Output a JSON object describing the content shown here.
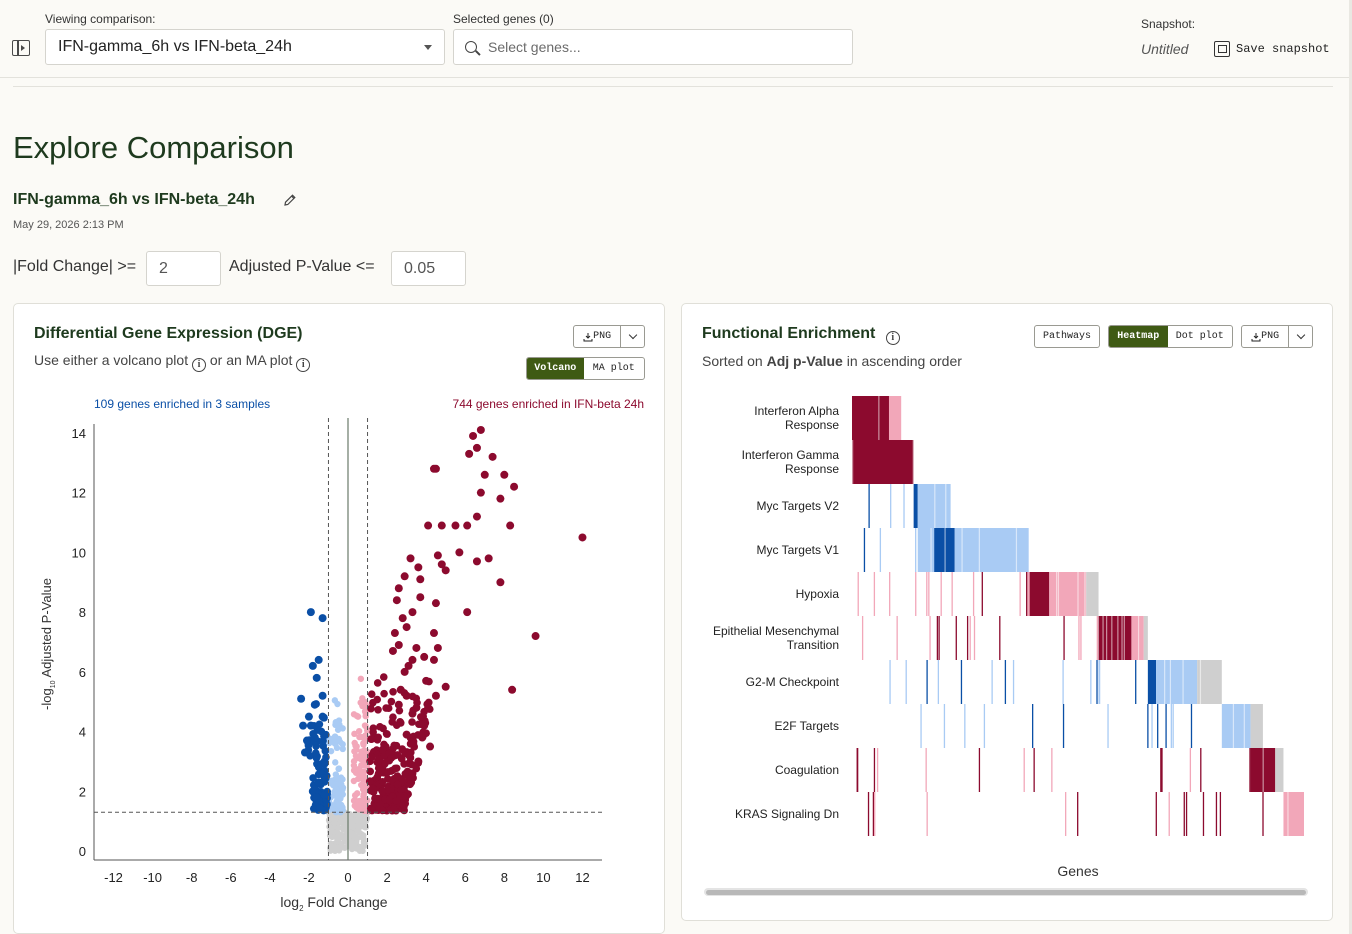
{
  "topbar": {
    "comparison_label": "Viewing comparison:",
    "comparison_value": "IFN-gamma_6h vs IFN-beta_24h",
    "genes_label": "Selected genes (0)",
    "genes_placeholder": "Select genes...",
    "snapshot_label": "Snapshot:",
    "snapshot_name": "Untitled",
    "save_label": "Save snapshot"
  },
  "page": {
    "title": "Explore Comparison",
    "comparison_title": "IFN-gamma_6h vs IFN-beta_24h",
    "date": "May 29, 2026 2:13 PM"
  },
  "thresholds": {
    "fold_label": "|Fold Change| >=",
    "fold_value": "2",
    "padj_label": "Adjusted P-Value <=",
    "padj_value": "0.05"
  },
  "dge": {
    "title": "Differential Gene Expression (DGE)",
    "subtitle_a": "Use either a volcano plot",
    "subtitle_b": "or an MA plot",
    "png_label": "PNG",
    "tab_volcano": "Volcano",
    "tab_ma": "MA plot",
    "left_annotation": "109 genes enriched in 3 samples",
    "right_annotation": "744 genes enriched in IFN-beta 24h"
  },
  "enrichment": {
    "title": "Functional Enrichment",
    "subtitle_a": "Sorted on",
    "subtitle_b": "Adj p-Value",
    "subtitle_c": "in ascending order",
    "pathways_label": "Pathways",
    "tab_heatmap": "Heatmap",
    "tab_dot": "Dot plot",
    "png_label": "PNG",
    "x_label": "Genes",
    "pathway_names": [
      [
        "Interferon Alpha",
        "Response"
      ],
      [
        "Interferon Gamma",
        "Response"
      ],
      [
        "Myc Targets V2"
      ],
      [
        "Myc Targets V1"
      ],
      [
        "Hypoxia"
      ],
      [
        "Epithelial Mesenchymal",
        "Transition"
      ],
      [
        "G2-M Checkpoint"
      ],
      [
        "E2F Targets"
      ],
      [
        "Coagulation"
      ],
      [
        "KRAS Signaling Dn"
      ]
    ]
  },
  "colors": {
    "up": "#8c0a2e",
    "up_light": "#f2a7b9",
    "down": "#0a4fa6",
    "down_light": "#a9cbf4",
    "ns": "#cfcfcf",
    "accent": "#3f5a14",
    "title": "#1e3a1e"
  },
  "chart_data": {
    "type": "scatter",
    "xlabel": "log2 Fold Change",
    "ylabel": "-log10 Adjusted P-Value",
    "xlim": [
      -13,
      13
    ],
    "ylim": [
      -0.3,
      14.3
    ],
    "xticks": [
      -12,
      -10,
      -8,
      -6,
      -4,
      -2,
      0,
      2,
      4,
      6,
      8,
      10,
      12
    ],
    "yticks": [
      0,
      2,
      4,
      6,
      8,
      10,
      12,
      14
    ],
    "fold_threshold": 1,
    "pvalue_line": 1.3,
    "series": [
      {
        "color": "up",
        "points": [
          [
            6.2,
            13.3
          ],
          [
            6.6,
            13.5
          ],
          [
            7.4,
            13.2
          ],
          [
            6.4,
            13.9
          ],
          [
            6.8,
            14.1
          ],
          [
            4.5,
            12.8
          ],
          [
            4.4,
            12.8
          ],
          [
            7.0,
            12.6
          ],
          [
            8.0,
            12.6
          ],
          [
            8.5,
            12.2
          ],
          [
            6.8,
            12.0
          ],
          [
            7.8,
            11.8
          ],
          [
            6.6,
            11.2
          ],
          [
            8.3,
            10.9
          ],
          [
            4.8,
            10.9
          ],
          [
            5.5,
            10.9
          ],
          [
            4.1,
            10.9
          ],
          [
            6.1,
            10.9
          ],
          [
            12.0,
            10.5
          ],
          [
            5.7,
            10.0
          ],
          [
            3.2,
            9.8
          ],
          [
            7.2,
            9.8
          ],
          [
            4.6,
            9.9
          ],
          [
            6.6,
            9.7
          ],
          [
            4.8,
            9.6
          ],
          [
            3.6,
            9.5
          ],
          [
            5.0,
            9.4
          ],
          [
            2.9,
            9.2
          ],
          [
            7.8,
            9.0
          ],
          [
            3.7,
            9.1
          ],
          [
            2.6,
            8.8
          ],
          [
            3.7,
            8.5
          ],
          [
            4.5,
            8.3
          ],
          [
            3.3,
            8.0
          ],
          [
            6.1,
            8.0
          ],
          [
            2.5,
            8.4
          ],
          [
            2.8,
            7.8
          ],
          [
            3.0,
            7.5
          ],
          [
            2.4,
            7.3
          ],
          [
            4.4,
            7.3
          ],
          [
            9.6,
            7.2
          ],
          [
            2.6,
            6.9
          ],
          [
            3.5,
            6.8
          ],
          [
            4.6,
            6.8
          ],
          [
            3.3,
            6.4
          ],
          [
            3.9,
            6.5
          ],
          [
            4.4,
            6.4
          ],
          [
            2.3,
            6.7
          ],
          [
            3.1,
            6.2
          ],
          [
            2.9,
            6.0
          ],
          [
            4.0,
            5.7
          ],
          [
            5.0,
            5.5
          ],
          [
            8.4,
            5.4
          ],
          [
            4.5,
            5.2
          ],
          [
            3.0,
            5.2
          ],
          [
            2.7,
            5.4
          ],
          [
            3.5,
            4.8
          ],
          [
            4.1,
            4.8
          ],
          [
            3.9,
            4.2
          ],
          [
            3.3,
            4.6
          ],
          [
            2.6,
            4.9
          ],
          [
            4.2,
            3.5
          ],
          [
            3.6,
            3.0
          ],
          [
            3.0,
            3.9
          ],
          [
            2.4,
            3.2
          ],
          [
            3.3,
            2.6
          ],
          [
            3.8,
            3.8
          ]
        ]
      },
      {
        "color": "down",
        "points": [
          [
            -1.9,
            8.0
          ],
          [
            -1.3,
            7.8
          ],
          [
            -2.2,
            3.3
          ],
          [
            -1.8,
            6.2
          ],
          [
            -1.6,
            5.8
          ],
          [
            -1.5,
            6.4
          ],
          [
            -2.0,
            4.5
          ],
          [
            -1.9,
            4.2
          ],
          [
            -2.4,
            5.1
          ],
          [
            -1.7,
            3.8
          ],
          [
            -1.5,
            2.3
          ],
          [
            -1.4,
            2.6
          ],
          [
            -1.8,
            2.0
          ],
          [
            -2.1,
            3.7
          ],
          [
            -2.3,
            4.2
          ],
          [
            -1.3,
            5.2
          ],
          [
            -1.7,
            4.9
          ],
          [
            -1.2,
            3.0
          ],
          [
            -1.6,
            1.8
          ],
          [
            -1.3,
            4.5
          ]
        ]
      }
    ]
  },
  "heatmap_data": {
    "type": "heatmap",
    "row_ticks": [
      {
        "bands": [
          {
            "c": "up",
            "a": 0.0,
            "b": 0.09
          },
          {
            "c": "up_light",
            "a": 0.09,
            "b": 0.12
          }
        ]
      },
      {
        "bands": [
          {
            "c": "up",
            "a": 0.0,
            "b": 0.15
          }
        ]
      },
      {
        "bands": [
          {
            "c": "down",
            "a": 0.15,
            "b": 0.16
          },
          {
            "c": "down_light",
            "a": 0.16,
            "b": 0.24
          }
        ]
      },
      {
        "bands": [
          {
            "c": "down_light",
            "a": 0.16,
            "b": 0.2
          },
          {
            "c": "down",
            "a": 0.2,
            "b": 0.25
          },
          {
            "c": "down_light",
            "a": 0.25,
            "b": 0.43
          }
        ]
      },
      {
        "bands": [
          {
            "c": "up",
            "a": 0.43,
            "b": 0.48
          },
          {
            "c": "up_light",
            "a": 0.48,
            "b": 0.57
          },
          {
            "c": "ns",
            "a": 0.57,
            "b": 0.6
          }
        ]
      },
      {
        "bands": [
          {
            "c": "up",
            "a": 0.6,
            "b": 0.68
          },
          {
            "c": "up_light",
            "a": 0.68,
            "b": 0.71
          },
          {
            "c": "ns",
            "a": 0.71,
            "b": 0.72
          }
        ]
      },
      {
        "bands": [
          {
            "c": "down",
            "a": 0.72,
            "b": 0.74
          },
          {
            "c": "down_light",
            "a": 0.74,
            "b": 0.84
          },
          {
            "c": "ns",
            "a": 0.84,
            "b": 0.9
          }
        ]
      },
      {
        "bands": [
          {
            "c": "down_light",
            "a": 0.9,
            "b": 0.97
          },
          {
            "c": "ns",
            "a": 0.97,
            "b": 1.0
          }
        ]
      },
      {
        "bands": [
          {
            "c": "up",
            "a": 0.97,
            "b": 1.03
          },
          {
            "c": "ns",
            "a": 1.03,
            "b": 1.05
          }
        ]
      },
      {
        "bands": [
          {
            "c": "up_light",
            "a": 1.05,
            "b": 1.1
          }
        ]
      }
    ]
  }
}
